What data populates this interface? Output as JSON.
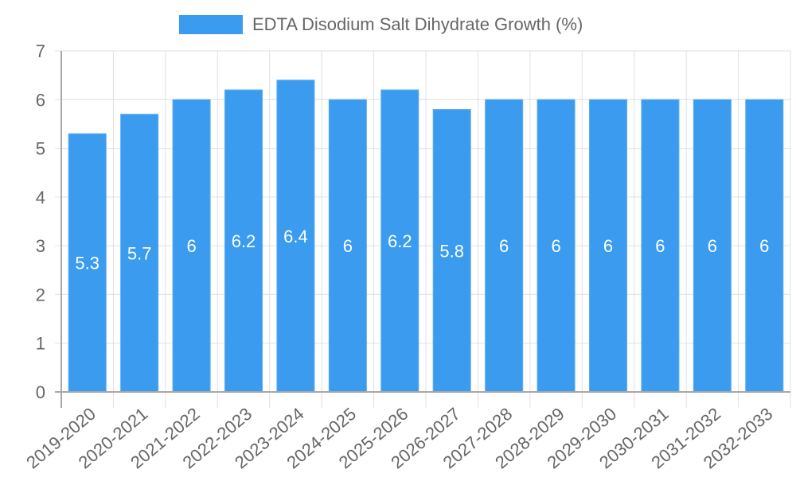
{
  "legend": {
    "label": "EDTA Disodium Salt Dihydrate Growth (%)",
    "color": "#3a9bef"
  },
  "colors": {
    "bar": "#3a9bef",
    "bar_border": "#5fb0f3",
    "grid": "#e0e0e0",
    "axis": "#a8a8a8",
    "tick_text": "#666666",
    "label_text": "#ffffff"
  },
  "chart_data": {
    "type": "bar",
    "title": "",
    "xlabel": "",
    "ylabel": "",
    "ylim": [
      0,
      7
    ],
    "yticks": [
      0,
      1,
      2,
      3,
      4,
      5,
      6,
      7
    ],
    "grid": true,
    "legend_position": "top",
    "categories": [
      "2019-2020",
      "2020-2021",
      "2021-2022",
      "2022-2023",
      "2023-2024",
      "2024-2025",
      "2025-2026",
      "2026-2027",
      "2027-2028",
      "2028-2029",
      "2029-2030",
      "2030-2031",
      "2031-2032",
      "2032-2033"
    ],
    "series": [
      {
        "name": "EDTA Disodium Salt Dihydrate Growth (%)",
        "values": [
          5.3,
          5.7,
          6,
          6.2,
          6.4,
          6,
          6.2,
          5.8,
          6,
          6,
          6,
          6,
          6,
          6
        ]
      }
    ],
    "data_labels": [
      "5.3",
      "5.7",
      "6",
      "6.2",
      "6.4",
      "6",
      "6.2",
      "5.8",
      "6",
      "6",
      "6",
      "6",
      "6",
      "6"
    ]
  }
}
